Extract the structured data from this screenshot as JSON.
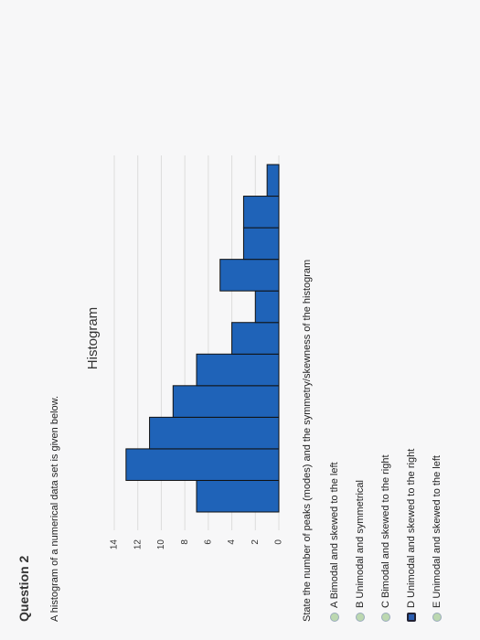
{
  "header": {
    "title": "Question 2",
    "intro": "A histogram of a numerical data set is given below."
  },
  "chart_data": {
    "type": "bar",
    "title": "Histogram",
    "categories": [
      null,
      null,
      null,
      null,
      null,
      null,
      null,
      null,
      null,
      null,
      null
    ],
    "values": [
      7,
      13,
      11,
      9,
      7,
      4,
      2,
      5,
      3,
      3,
      1
    ],
    "color": "#1f63b8",
    "ylim": [
      0,
      14
    ],
    "yticks": [
      0,
      2,
      4,
      6,
      8,
      10,
      12,
      14
    ],
    "grid": true
  },
  "question": "State the number of peaks (modes) and the symmetry/skewness of the histogram",
  "options": [
    {
      "label": "A Bimodal and skewed to the left",
      "selected": false
    },
    {
      "label": "B Unimodal and symmetrical",
      "selected": false
    },
    {
      "label": "C Bimodal and skewed to the right",
      "selected": false
    },
    {
      "label": "D Unimodal and skewed to the right",
      "selected": true
    },
    {
      "label": "E Unimodal and skewed to the left",
      "selected": false
    }
  ]
}
